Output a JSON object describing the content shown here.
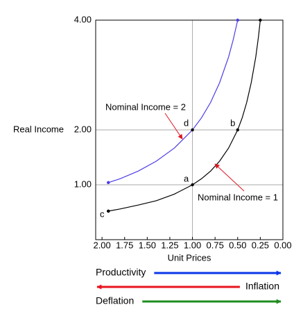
{
  "chart_data": {
    "type": "line",
    "xlabel": "Unit Prices",
    "ylabel": "Real Income",
    "xlim": [
      2.07,
      0
    ],
    "ylim": [
      0,
      4
    ],
    "xticks": [
      {
        "value": 2,
        "label": "2.00"
      },
      {
        "value": 1.75,
        "label": "1.75"
      },
      {
        "value": 1.5,
        "label": "1.50"
      },
      {
        "value": 1.25,
        "label": "1.25"
      },
      {
        "value": 1,
        "label": "1.00"
      },
      {
        "value": 0.75,
        "label": "0.75"
      },
      {
        "value": 0.5,
        "label": "0.50"
      },
      {
        "value": 0.25,
        "label": "0.25"
      },
      {
        "value": 0,
        "label": "0.00"
      }
    ],
    "yticks": [
      {
        "value": 1,
        "label": "1.00"
      },
      {
        "value": 2,
        "label": "2.00"
      },
      {
        "value": 4,
        "label": "4.00"
      }
    ],
    "x_grid_at": 1,
    "series": [
      {
        "name": "Nominal Income = 1",
        "color": "#000000",
        "x": [
          1.93,
          1.8,
          1.6,
          1.4,
          1.2,
          1.0,
          0.9,
          0.8,
          0.7,
          0.6,
          0.5,
          0.45,
          0.4,
          0.35,
          0.3,
          0.27,
          0.25
        ],
        "values": [
          0.52,
          0.56,
          0.63,
          0.71,
          0.83,
          1.0,
          1.11,
          1.25,
          1.43,
          1.67,
          2.0,
          2.22,
          2.5,
          2.86,
          3.33,
          3.7,
          4.0
        ]
      },
      {
        "name": "Nominal Income = 2",
        "color": "#4b3ce6",
        "x": [
          1.93,
          1.8,
          1.6,
          1.4,
          1.2,
          1.0,
          0.9,
          0.8,
          0.7,
          0.6,
          0.55,
          0.5
        ],
        "values": [
          1.04,
          1.11,
          1.25,
          1.43,
          1.67,
          2.0,
          2.22,
          2.5,
          2.86,
          3.33,
          3.64,
          4.0
        ]
      }
    ],
    "annotation_color": "#e0141e",
    "points": [
      {
        "text": "a",
        "x": 1.0,
        "y": 1.0
      },
      {
        "text": "b",
        "x": 0.5,
        "y": 2.0
      },
      {
        "text": "c",
        "x": 1.93,
        "y": 0.52
      },
      {
        "text": "d",
        "x": 1.0,
        "y": 2.0
      }
    ],
    "arrows": [
      {
        "label": "Productivity",
        "color": "#0a36e8",
        "direction": "right"
      },
      {
        "label": "Inflation",
        "color": "#e8141e",
        "direction": "left"
      },
      {
        "label": "Deflation",
        "color": "#1e8c1e",
        "direction": "right"
      }
    ]
  }
}
